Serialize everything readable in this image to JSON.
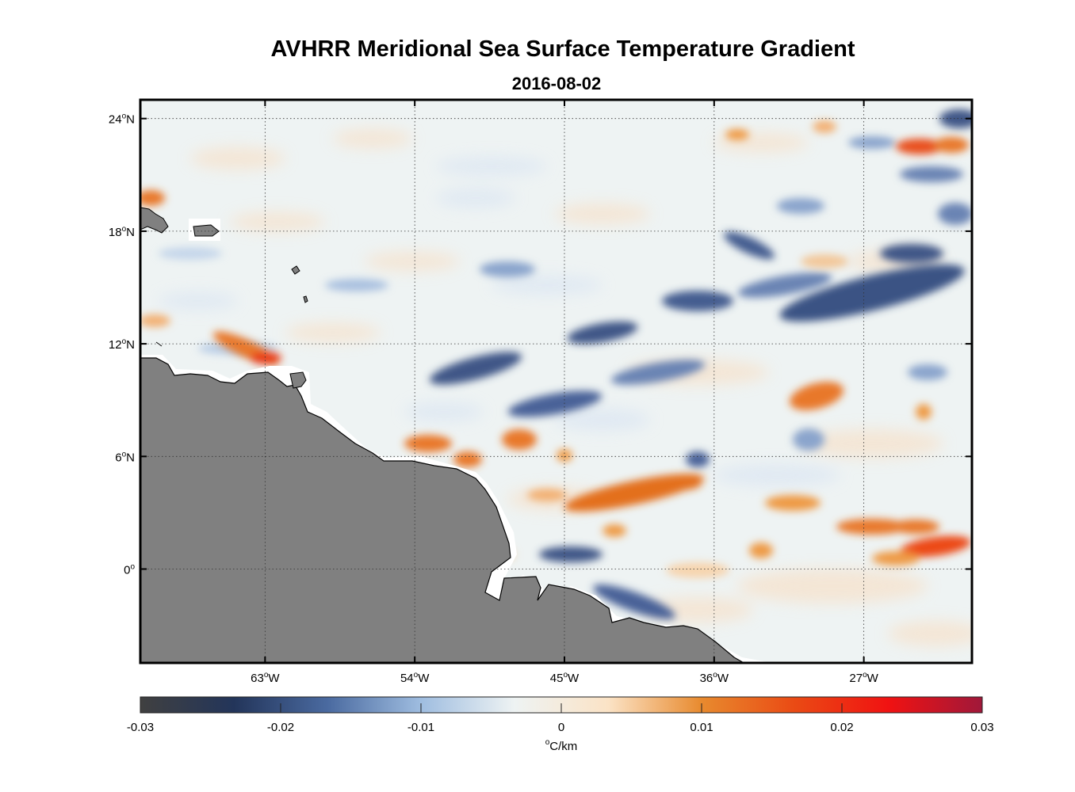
{
  "title": "AVHRR Meridional Sea Surface Temperature Gradient",
  "subtitle": "2016-08-02",
  "map": {
    "lon_range": [
      -70.5,
      -20.5
    ],
    "lat_range": [
      -5,
      25
    ],
    "lat_ticks": [
      {
        "value": 24,
        "deg": "24",
        "hemi": "N"
      },
      {
        "value": 18,
        "deg": "18",
        "hemi": "N"
      },
      {
        "value": 12,
        "deg": "12",
        "hemi": "N"
      },
      {
        "value": 6,
        "deg": "6",
        "hemi": "N"
      },
      {
        "value": 0,
        "deg": "0",
        "hemi": ""
      }
    ],
    "lon_ticks": [
      {
        "value": -63,
        "deg": "63",
        "hemi": "W"
      },
      {
        "value": -54,
        "deg": "54",
        "hemi": "W"
      },
      {
        "value": -45,
        "deg": "45",
        "hemi": "W"
      },
      {
        "value": -36,
        "deg": "36",
        "hemi": "W"
      },
      {
        "value": -27,
        "deg": "27",
        "hemi": "W"
      }
    ],
    "land_color": "#808080",
    "grid": true
  },
  "colorbar": {
    "min": -0.03,
    "max": 0.03,
    "tick_labels": [
      "-0.03",
      "-0.02",
      "-0.01",
      "0",
      "0.01",
      "0.02",
      "0.03"
    ],
    "units_label": "C/km",
    "units_degree": "o",
    "colors": [
      "#404040",
      "#23355a",
      "#4a6aa0",
      "#9fbde0",
      "#eef3f3",
      "#fbe3c6",
      "#e88a2e",
      "#ea4a14",
      "#f01212",
      "#a0183a"
    ]
  }
}
